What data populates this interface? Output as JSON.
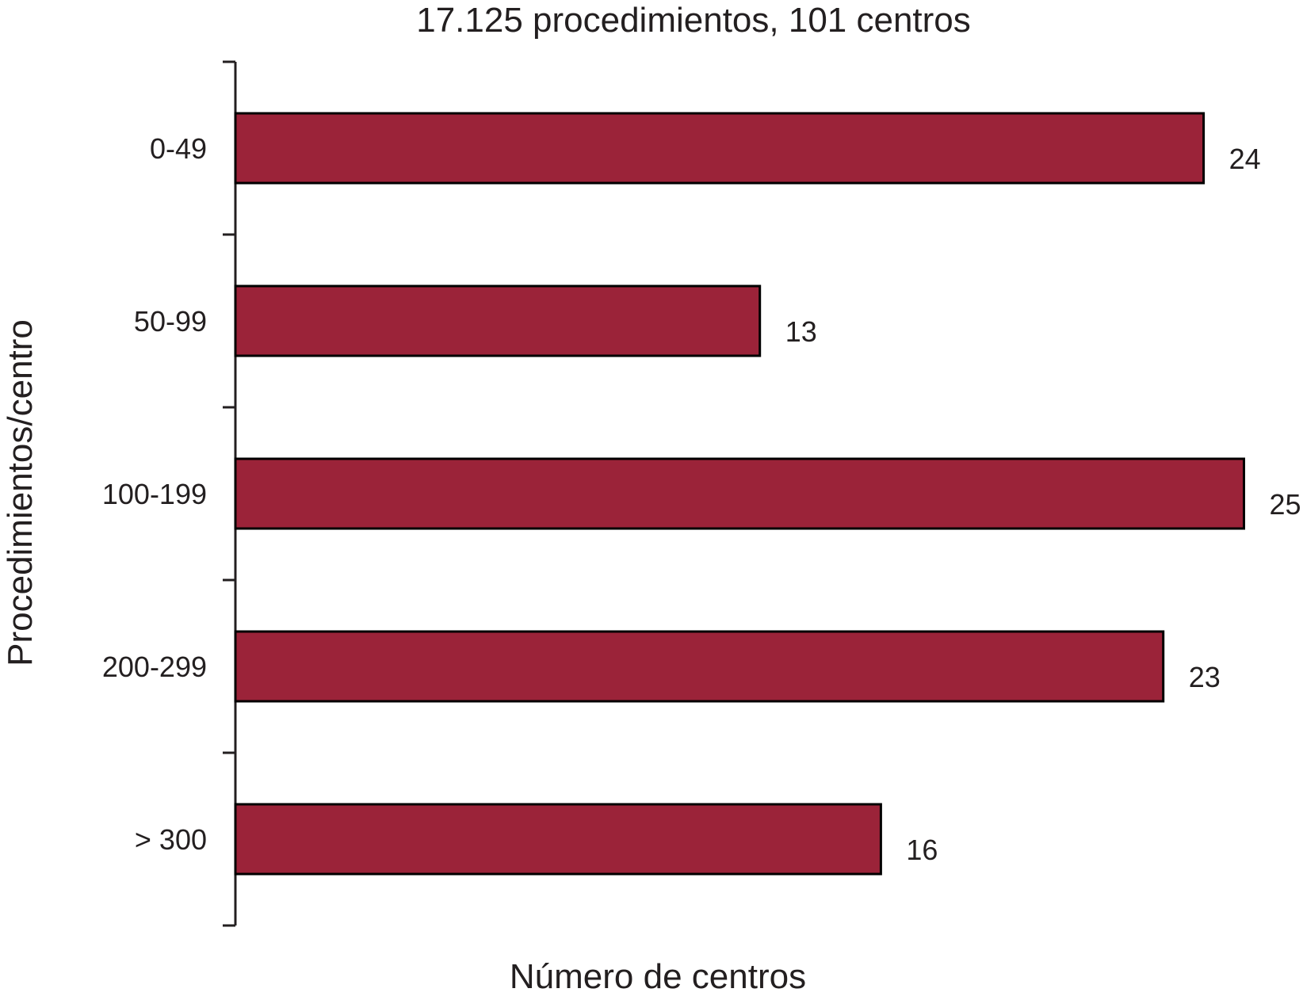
{
  "chart_data": {
    "type": "bar",
    "orientation": "horizontal",
    "title": "17.125 procedimientos, 101 centros",
    "xlabel": "Número de centros",
    "ylabel": "Procedimientos/centro",
    "categories": [
      "0-49",
      "50-99",
      "100-199",
      "200-299",
      "> 300"
    ],
    "values": [
      24,
      13,
      25,
      23,
      16
    ],
    "data_labels": [
      "24",
      "13",
      "25",
      "23",
      "16"
    ],
    "xlim": [
      0,
      25
    ],
    "grid": false,
    "legend": "none",
    "colors": {
      "bar": "#9b2339",
      "bar_outline": "#000000",
      "text": "#231f20"
    }
  }
}
